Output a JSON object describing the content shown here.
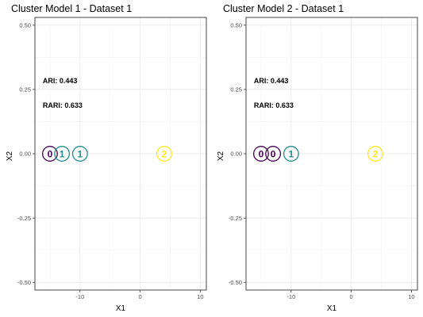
{
  "chart_data": [
    {
      "type": "scatter",
      "title": "Cluster Model 1 - Dataset 1",
      "xlabel": "X1",
      "ylabel": "X2",
      "xlim": [
        -17.5,
        11
      ],
      "ylim": [
        -0.53,
        0.53
      ],
      "xticks": [
        -10,
        0,
        10
      ],
      "yticks": [
        -0.5,
        -0.25,
        0,
        0.25,
        0.5
      ],
      "xtick_labels": [
        "-10",
        "0",
        "10"
      ],
      "ytick_labels": [
        "-0.50",
        "-0.25",
        "0.00",
        "0.25",
        "0.50"
      ],
      "grid": true,
      "annotations": [
        "ARI: 0.443",
        "RARI: 0.633"
      ],
      "points": [
        {
          "x": -15,
          "y": 0,
          "label": "0"
        },
        {
          "x": -13,
          "y": 0,
          "label": "1"
        },
        {
          "x": -10,
          "y": 0,
          "label": "1"
        },
        {
          "x": 4,
          "y": 0,
          "label": "2"
        }
      ]
    },
    {
      "type": "scatter",
      "title": "Cluster Model 2 - Dataset 1",
      "xlabel": "X1",
      "ylabel": "X2",
      "xlim": [
        -17.5,
        11
      ],
      "ylim": [
        -0.53,
        0.53
      ],
      "xticks": [
        -10,
        0,
        10
      ],
      "yticks": [
        -0.5,
        -0.25,
        0,
        0.25,
        0.5
      ],
      "xtick_labels": [
        "-10",
        "0",
        "10"
      ],
      "ytick_labels": [
        "-0.50",
        "-0.25",
        "0.00",
        "0.25",
        "0.50"
      ],
      "grid": true,
      "annotations": [
        "ARI: 0.443",
        "RARI: 0.633"
      ],
      "points": [
        {
          "x": -15,
          "y": 0,
          "label": "0"
        },
        {
          "x": -13,
          "y": 0,
          "label": "0"
        },
        {
          "x": -10,
          "y": 0,
          "label": "1"
        },
        {
          "x": 4,
          "y": 0,
          "label": "2"
        }
      ]
    }
  ],
  "colors": {
    "cluster_0": "#440154",
    "cluster_1": "#21908C",
    "cluster_2": "#FDE725",
    "grid_major": "#ebebeb",
    "grid_minor": "#f5f5f5",
    "panel_border": "#333333"
  }
}
